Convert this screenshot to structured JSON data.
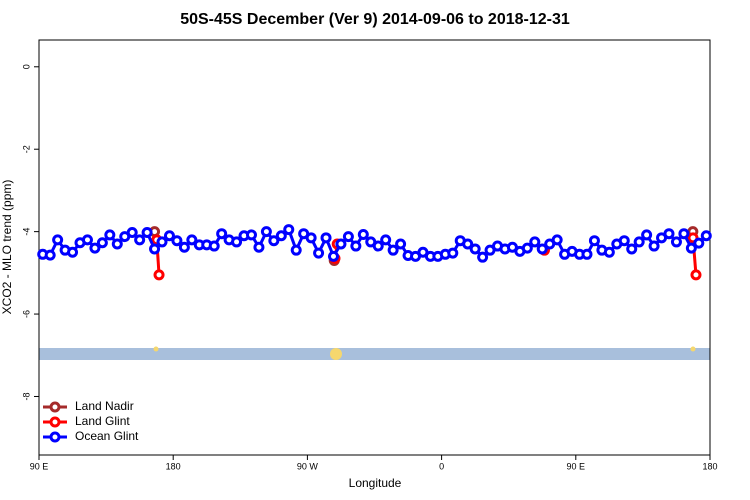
{
  "chart_data": {
    "type": "line",
    "title": "50S-45S December (Ver 9)   2014-09-06 to 2018-12-31",
    "x_label": "Longitude",
    "y_label": "XCO2 - MLO trend (ppm)",
    "xlim": [
      90,
      540
    ],
    "xticks": [
      {
        "value": 90,
        "label": "90 E"
      },
      {
        "value": 180,
        "label": "180"
      },
      {
        "value": 270,
        "label": "90 W"
      },
      {
        "value": 360,
        "label": "0"
      },
      {
        "value": 450,
        "label": "90 E"
      },
      {
        "value": 540,
        "label": "180"
      }
    ],
    "ylim": [
      -9.42,
      0.65
    ],
    "yticks": [
      0,
      -2,
      -4,
      -6,
      -8
    ],
    "legend": "bottom-left",
    "series": [
      {
        "name": "Land Nadir",
        "color": "#a52a2a",
        "x": [
          167.5,
          null,
          288,
          null,
          528.5
        ],
        "values": [
          -4.0,
          null,
          -4.7,
          null,
          -4.0
        ]
      },
      {
        "name": "Land Glint",
        "color": "#ff0000",
        "x": [
          169,
          170.5,
          null,
          288.5,
          290,
          null,
          429,
          null,
          528.6,
          530.6
        ],
        "values": [
          -4.2,
          -5.05,
          null,
          -4.65,
          -4.3,
          null,
          -4.45,
          null,
          -4.15,
          -5.05
        ]
      },
      {
        "name": "Ocean Glint",
        "color": "#0000ff",
        "x": [
          92.5,
          97.5,
          102.5,
          107.5,
          112.5,
          117.5,
          122.5,
          127.5,
          132.5,
          137.5,
          142.5,
          147.5,
          152.5,
          157.5,
          162.5,
          167.5,
          172.5,
          177.5,
          182.5,
          187.5,
          192.5,
          197.5,
          202.5,
          207.5,
          212.5,
          217.5,
          222.5,
          227.5,
          232.5,
          237.5,
          242.5,
          247.5,
          252.5,
          257.5,
          262.5,
          267.5,
          272.5,
          277.5,
          282.5,
          287.5,
          292.5,
          297.5,
          302.5,
          307.5,
          312.5,
          317.5,
          322.5,
          327.5,
          332.5,
          337.5,
          342.5,
          347.5,
          352.5,
          357.5,
          362.5,
          367.5,
          372.5,
          377.5,
          382.5,
          387.5,
          392.5,
          397.5,
          402.5,
          407.5,
          412.5,
          417.5,
          422.5,
          427.5,
          432.5,
          437.5,
          442.5,
          447.5,
          452.5,
          457.5,
          462.5,
          467.5,
          472.5,
          477.5,
          482.5,
          487.5,
          492.5,
          497.5,
          502.5,
          507.5,
          512.5,
          517.5,
          522.5,
          527.5,
          532.5,
          537.5
        ],
        "values": [
          -4.55,
          -4.57,
          -4.2,
          -4.45,
          -4.5,
          -4.27,
          -4.2,
          -4.4,
          -4.27,
          -4.08,
          -4.3,
          -4.12,
          -4.02,
          -4.2,
          -4.02,
          -4.42,
          -4.25,
          -4.1,
          -4.22,
          -4.38,
          -4.2,
          -4.32,
          -4.32,
          -4.35,
          -4.05,
          -4.2,
          -4.25,
          -4.1,
          -4.08,
          -4.38,
          -4.0,
          -4.22,
          -4.1,
          -3.95,
          -4.45,
          -4.05,
          -4.15,
          -4.52,
          -4.15,
          -4.6,
          -4.3,
          -4.12,
          -4.35,
          -4.07,
          -4.25,
          -4.35,
          -4.2,
          -4.45,
          -4.3,
          -4.58,
          -4.6,
          -4.5,
          -4.6,
          -4.6,
          -4.55,
          -4.52,
          -4.22,
          -4.3,
          -4.42,
          -4.62,
          -4.45,
          -4.35,
          -4.42,
          -4.38,
          -4.48,
          -4.4,
          -4.25,
          -4.42,
          -4.3,
          -4.2,
          -4.55,
          -4.48,
          -4.55,
          -4.55,
          -4.22,
          -4.45,
          -4.5,
          -4.3,
          -4.22,
          -4.42,
          -4.25,
          -4.08,
          -4.35,
          -4.15,
          -4.05,
          -4.25,
          -4.05,
          -4.4,
          -4.28,
          -4.1
        ]
      }
    ]
  }
}
